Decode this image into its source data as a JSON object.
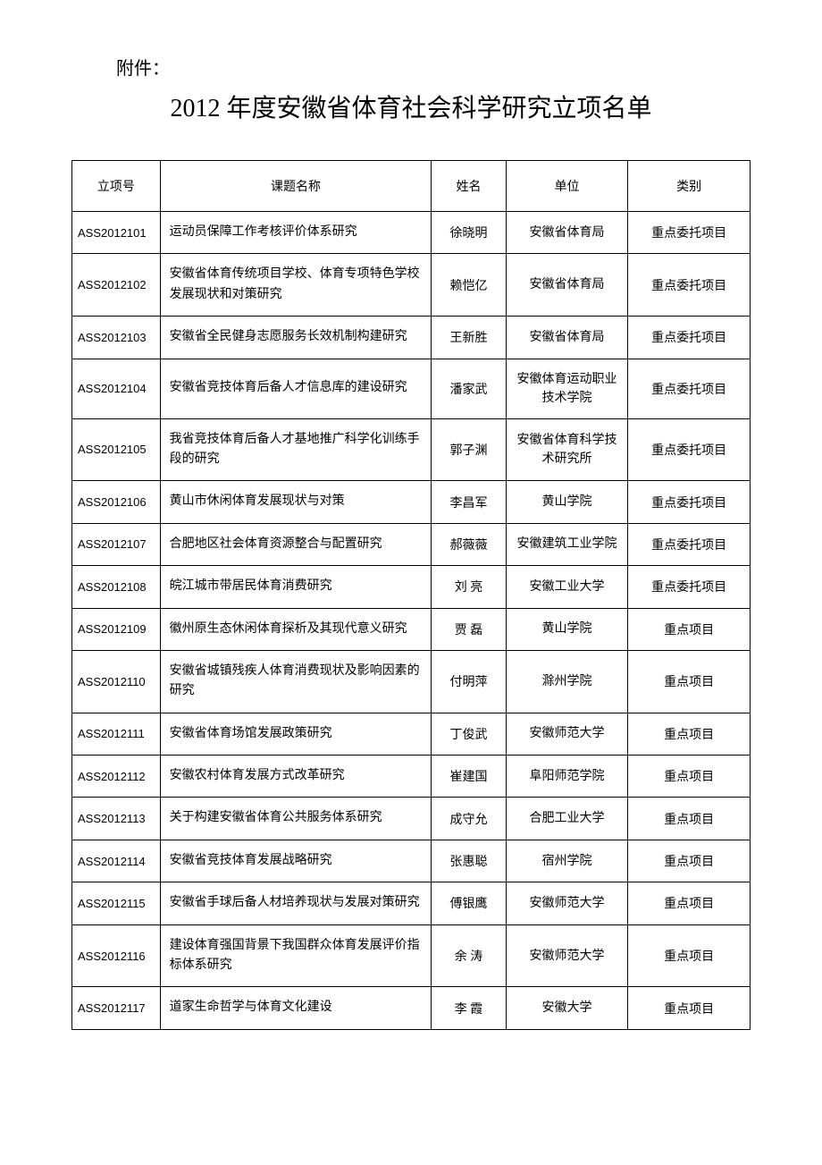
{
  "attachment_label": "附件：",
  "main_title": "2012 年度安徽省体育社会科学研究立项名单",
  "table": {
    "columns": [
      "立项号",
      "课题名称",
      "姓名",
      "单位",
      "类别"
    ],
    "rows": [
      {
        "id": "ASS2012101",
        "title": "运动员保障工作考核评价体系研究",
        "name": "徐晓明",
        "org": "安徽省体育局",
        "cat": "重点委托项目"
      },
      {
        "id": "ASS2012102",
        "title": "安徽省体育传统项目学校、体育专项特色学校发展现状和对策研究",
        "name": "赖恺亿",
        "org": "安徽省体育局",
        "cat": "重点委托项目"
      },
      {
        "id": "ASS2012103",
        "title": "安徽省全民健身志愿服务长效机制构建研究",
        "name": "王新胜",
        "org": "安徽省体育局",
        "cat": "重点委托项目"
      },
      {
        "id": "ASS2012104",
        "title": "安徽省竞技体育后备人才信息库的建设研究",
        "name": "潘家武",
        "org": "安徽体育运动职业技术学院",
        "cat": "重点委托项目"
      },
      {
        "id": "ASS2012105",
        "title": "我省竞技体育后备人才基地推广科学化训练手段的研究",
        "name": "郭子渊",
        "org": "安徽省体育科学技术研究所",
        "cat": "重点委托项目"
      },
      {
        "id": "ASS2012106",
        "title": "黄山市休闲体育发展现状与对策",
        "name": "李昌军",
        "org": "黄山学院",
        "cat": "重点委托项目"
      },
      {
        "id": "ASS2012107",
        "title": "合肥地区社会体育资源整合与配置研究",
        "name": "郝薇薇",
        "org": "安徽建筑工业学院",
        "cat": "重点委托项目"
      },
      {
        "id": "ASS2012108",
        "title": "皖江城市带居民体育消费研究",
        "name": "刘 亮",
        "org": "安徽工业大学",
        "cat": "重点委托项目"
      },
      {
        "id": "ASS2012109",
        "title": "徽州原生态休闲体育探析及其现代意义研究",
        "name": "贾 磊",
        "org": "黄山学院",
        "cat": "重点项目"
      },
      {
        "id": "ASS2012110",
        "title": "安徽省城镇残疾人体育消费现状及影响因素的研究",
        "name": "付明萍",
        "org": "滁州学院",
        "cat": "重点项目"
      },
      {
        "id": "ASS2012111",
        "title": "安徽省体育场馆发展政策研究",
        "name": "丁俊武",
        "org": "安徽师范大学",
        "cat": "重点项目"
      },
      {
        "id": "ASS2012112",
        "title": "安徽农村体育发展方式改革研究",
        "name": "崔建国",
        "org": "阜阳师范学院",
        "cat": "重点项目"
      },
      {
        "id": "ASS2012113",
        "title": "关于构建安徽省体育公共服务体系研究",
        "name": "成守允",
        "org": "合肥工业大学",
        "cat": "重点项目"
      },
      {
        "id": "ASS2012114",
        "title": "安徽省竞技体育发展战略研究",
        "name": "张惠聪",
        "org": "宿州学院",
        "cat": "重点项目"
      },
      {
        "id": "ASS2012115",
        "title": "安徽省手球后备人材培养现状与发展对策研究",
        "name": "傅银鹰",
        "org": "安徽师范大学",
        "cat": "重点项目"
      },
      {
        "id": "ASS2012116",
        "title": "建设体育强国背景下我国群众体育发展评价指标体系研究",
        "name": "余 涛",
        "org": "安徽师范大学",
        "cat": "重点项目"
      },
      {
        "id": "ASS2012117",
        "title": "道家生命哲学与体育文化建设",
        "name": "李 霞",
        "org": "安徽大学",
        "cat": "重点项目"
      }
    ]
  },
  "styling": {
    "background_color": "#ffffff",
    "text_color": "#000000",
    "border_color": "#000000",
    "title_fontsize": 28,
    "body_fontsize": 14,
    "attachment_fontsize": 20,
    "font_family_cjk": "SimSun",
    "font_family_latin": "Arial",
    "column_widths_pct": [
      13,
      40,
      11,
      18,
      18
    ],
    "column_align": [
      "left",
      "left",
      "center",
      "center",
      "center"
    ]
  }
}
